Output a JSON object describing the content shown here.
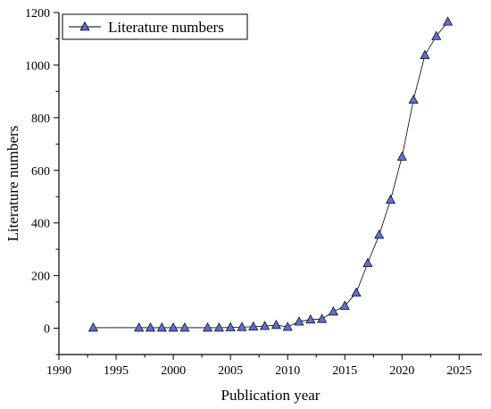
{
  "chart_data": {
    "type": "line",
    "title": "",
    "xlabel": "Publication year",
    "ylabel": "Literature numbers",
    "xlim": [
      1990,
      2027
    ],
    "ylim": [
      -100,
      1200
    ],
    "xticks": [
      1990,
      1995,
      2000,
      2005,
      2010,
      2015,
      2020,
      2025
    ],
    "yticks": [
      0,
      200,
      400,
      600,
      800,
      1000,
      1200
    ],
    "grid": false,
    "legend_position": "top-left",
    "series": [
      {
        "name": "Literature numbers",
        "color": "#000000",
        "marker": "triangle",
        "marker_fill": "#5b6ee1",
        "x": [
          1993,
          1997,
          1998,
          1999,
          2000,
          2001,
          2003,
          2004,
          2005,
          2006,
          2007,
          2008,
          2009,
          2010,
          2011,
          2012,
          2013,
          2014,
          2015,
          2016,
          2017,
          2018,
          2019,
          2020,
          2021,
          2022,
          2023,
          2024
        ],
        "y": [
          2,
          2,
          2,
          2,
          2,
          2,
          2,
          2,
          3,
          4,
          6,
          8,
          12,
          5,
          25,
          33,
          35,
          63,
          85,
          135,
          247,
          355,
          488,
          652,
          868,
          1038,
          1110,
          1165
        ]
      }
    ]
  }
}
